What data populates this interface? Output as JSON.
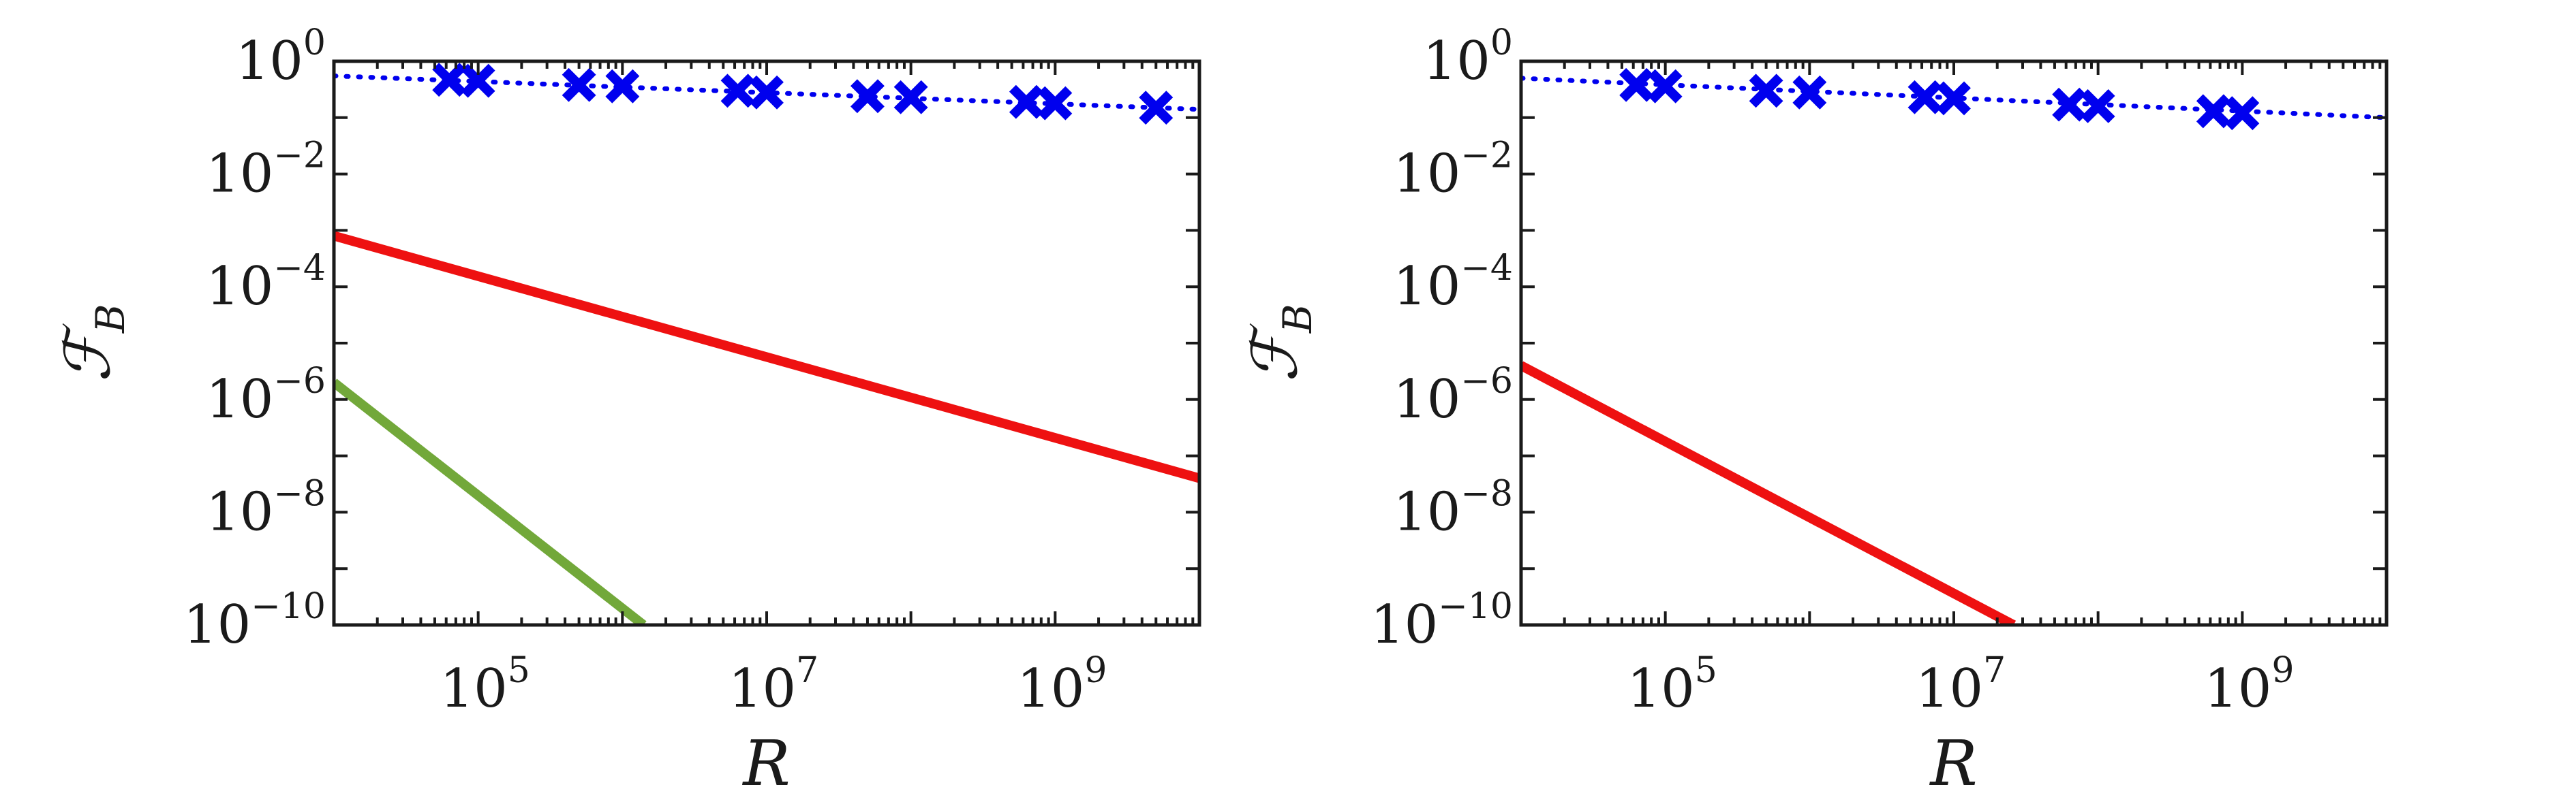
{
  "chart_data": [
    {
      "type": "line",
      "title": "",
      "xlabel": "R",
      "ylabel": "F_B",
      "xlabel_parts": {
        "base": "R"
      },
      "ylabel_parts": {
        "base": "ℱ",
        "sub": "B"
      },
      "xscale": "log",
      "yscale": "log",
      "xlim": [
        10000,
        10000000000
      ],
      "ylim": [
        1e-10,
        1
      ],
      "x_ticks": [
        {
          "base": "10",
          "exp": "5",
          "value": 100000
        },
        {
          "base": "10",
          "exp": "7",
          "value": 10000000
        },
        {
          "base": "10",
          "exp": "9",
          "value": 1000000000
        }
      ],
      "y_ticks": [
        {
          "base": "10",
          "exp": "0",
          "value": 1
        },
        {
          "base": "10",
          "exp": "−2",
          "value": 0.01
        },
        {
          "base": "10",
          "exp": "−4",
          "value": 0.0001
        },
        {
          "base": "10",
          "exp": "−6",
          "value": 1e-06
        },
        {
          "base": "10",
          "exp": "−8",
          "value": 1e-08
        },
        {
          "base": "10",
          "exp": "−10",
          "value": 1e-10
        }
      ],
      "grid": false,
      "series": [
        {
          "style": "dotted",
          "color": "#0000ee",
          "x": [
            10000,
            10000000000
          ],
          "y": [
            0.55,
            0.14
          ]
        },
        {
          "style": "markers-x",
          "color": "#0000ee",
          "x": [
            63000,
            100000,
            500000,
            1000000,
            6300000,
            10000000,
            50000000,
            100000000,
            630000000,
            1000000000,
            5000000000
          ],
          "y": [
            0.47,
            0.45,
            0.38,
            0.36,
            0.3,
            0.28,
            0.24,
            0.23,
            0.19,
            0.18,
            0.15
          ]
        },
        {
          "style": "solid",
          "color": "#ee1111",
          "x": [
            10000,
            10000000000
          ],
          "y": [
            0.0008,
            4e-08
          ]
        },
        {
          "style": "solid",
          "color": "#72a83a",
          "x": [
            10000,
            1400000
          ],
          "y": [
            2e-06,
            1e-10
          ]
        }
      ]
    },
    {
      "type": "line",
      "title": "",
      "xlabel": "R",
      "ylabel": "F_B",
      "xlabel_parts": {
        "base": "R"
      },
      "ylabel_parts": {
        "base": "ℱ",
        "sub": "B"
      },
      "xscale": "log",
      "yscale": "log",
      "xlim": [
        10000,
        10000000000
      ],
      "ylim": [
        1e-10,
        1
      ],
      "x_ticks": [
        {
          "base": "10",
          "exp": "5",
          "value": 100000
        },
        {
          "base": "10",
          "exp": "7",
          "value": 10000000
        },
        {
          "base": "10",
          "exp": "9",
          "value": 1000000000
        }
      ],
      "y_ticks": [
        {
          "base": "10",
          "exp": "0",
          "value": 1
        },
        {
          "base": "10",
          "exp": "−2",
          "value": 0.01
        },
        {
          "base": "10",
          "exp": "−4",
          "value": 0.0001
        },
        {
          "base": "10",
          "exp": "−6",
          "value": 1e-06
        },
        {
          "base": "10",
          "exp": "−8",
          "value": 1e-08
        },
        {
          "base": "10",
          "exp": "−10",
          "value": 1e-10
        }
      ],
      "grid": false,
      "series": [
        {
          "style": "dotted",
          "color": "#0000ee",
          "x": [
            10000,
            10000000000
          ],
          "y": [
            0.5,
            0.1
          ]
        },
        {
          "style": "markers-x",
          "color": "#0000ee",
          "x": [
            63000,
            100000,
            500000,
            1000000,
            6300000,
            10000000,
            63000000,
            100000000,
            630000000,
            1000000000
          ],
          "y": [
            0.38,
            0.36,
            0.3,
            0.28,
            0.23,
            0.22,
            0.17,
            0.16,
            0.13,
            0.12
          ]
        },
        {
          "style": "solid",
          "color": "#ee1111",
          "x": [
            10000,
            26000000
          ],
          "y": [
            4e-06,
            1e-10
          ]
        }
      ]
    }
  ]
}
